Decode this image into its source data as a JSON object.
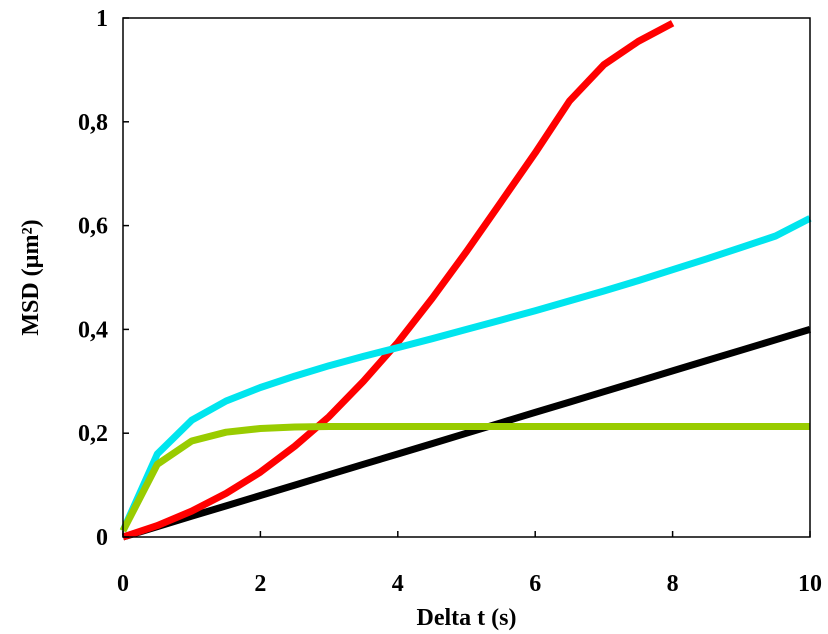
{
  "chart_data": {
    "type": "scatter",
    "title": "",
    "xlabel": "Delta t (s)",
    "ylabel": "MSD (µm²)",
    "xlim": [
      0,
      10
    ],
    "ylim": [
      0,
      1
    ],
    "x_ticks": [
      "0",
      "2",
      "4",
      "6",
      "8",
      "10"
    ],
    "y_ticks": [
      "0",
      "0,2",
      "0,4",
      "0,6",
      "0,8",
      "1"
    ],
    "x_tick_values": [
      0,
      2,
      4,
      6,
      8,
      10
    ],
    "y_tick_values": [
      0,
      0.2,
      0.4,
      0.6,
      0.8,
      1
    ],
    "grid": false,
    "legend": "none",
    "x": [
      0,
      0.5,
      1,
      1.5,
      2,
      2.5,
      3,
      3.5,
      4,
      4.5,
      5,
      5.5,
      6,
      6.5,
      7,
      7.5,
      8,
      8.5,
      9,
      9.5,
      10
    ],
    "series": [
      {
        "color": "#000000",
        "values": [
          0,
          0.02,
          0.04,
          0.06,
          0.08,
          0.1,
          0.12,
          0.14,
          0.16,
          0.18,
          0.2,
          0.22,
          0.24,
          0.26,
          0.28,
          0.3,
          0.32,
          0.34,
          0.36,
          0.38,
          0.4
        ]
      },
      {
        "color": "#ff0000",
        "values": [
          0,
          0.022,
          0.05,
          0.084,
          0.125,
          0.175,
          0.232,
          0.3,
          0.375,
          0.46,
          0.55,
          0.645,
          0.74,
          0.84,
          0.91,
          0.955,
          0.99
        ]
      },
      {
        "color": "#00e5ee",
        "values": [
          0.012,
          0.16,
          0.225,
          0.262,
          0.288,
          0.31,
          0.33,
          0.348,
          0.365,
          0.382,
          0.4,
          0.418,
          0.436,
          0.455,
          0.474,
          0.494,
          0.515,
          0.536,
          0.558,
          0.58,
          0.614
        ]
      },
      {
        "color": "#99cc00",
        "values": [
          0.012,
          0.14,
          0.185,
          0.202,
          0.209,
          0.212,
          0.213,
          0.213,
          0.213,
          0.213,
          0.213,
          0.213,
          0.213,
          0.213,
          0.213,
          0.213,
          0.213,
          0.213,
          0.213,
          0.213,
          0.213
        ]
      }
    ]
  }
}
